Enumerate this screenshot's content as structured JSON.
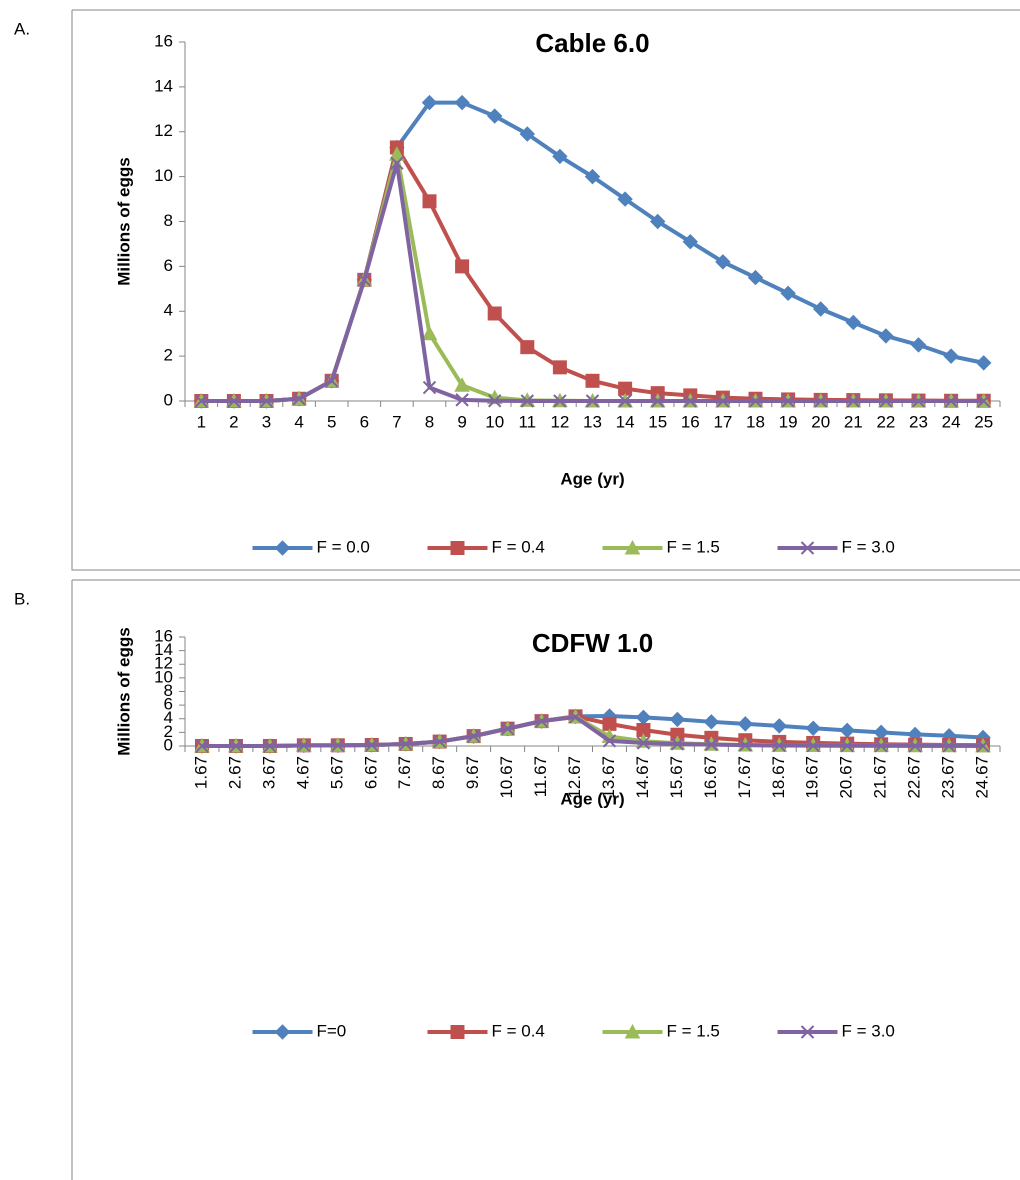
{
  "chart_data": [
    {
      "type": "line",
      "panel_label": "A.",
      "title": "Cable 6.0",
      "x_label": "Age (yr)",
      "y_label": "Millions of eggs",
      "categories": [
        "1",
        "2",
        "3",
        "4",
        "5",
        "6",
        "7",
        "8",
        "9",
        "10",
        "11",
        "12",
        "13",
        "14",
        "15",
        "16",
        "17",
        "18",
        "19",
        "20",
        "21",
        "22",
        "23",
        "24",
        "25"
      ],
      "ylim": [
        0,
        16
      ],
      "yticks": [
        0,
        2,
        4,
        6,
        8,
        10,
        12,
        14,
        16
      ],
      "grid": false,
      "legend": "bottom",
      "series": [
        {
          "name": "F = 0.0",
          "color": "#4F81BD",
          "marker": "diamond",
          "values": [
            0,
            0,
            0,
            0.1,
            0.9,
            5.4,
            11.3,
            13.3,
            13.3,
            12.7,
            11.9,
            10.9,
            10.0,
            9.0,
            8.0,
            7.1,
            6.2,
            5.5,
            4.8,
            4.1,
            3.5,
            2.9,
            2.5,
            2.0,
            1.7
          ]
        },
        {
          "name": "F = 0.4",
          "color": "#C0504D",
          "marker": "square",
          "values": [
            0,
            0,
            0,
            0.1,
            0.9,
            5.4,
            11.3,
            8.9,
            6.0,
            3.9,
            2.4,
            1.5,
            0.9,
            0.55,
            0.35,
            0.25,
            0.15,
            0.1,
            0.07,
            0.05,
            0.04,
            0.03,
            0.02,
            0.01,
            0.01
          ]
        },
        {
          "name": "F = 1.5",
          "color": "#9BBB59",
          "marker": "triangle",
          "values": [
            0,
            0,
            0,
            0.1,
            0.9,
            5.4,
            11.0,
            3.0,
            0.7,
            0.15,
            0.03,
            0.01,
            0,
            0,
            0,
            0,
            0,
            0,
            0,
            0,
            0,
            0,
            0,
            0,
            0
          ]
        },
        {
          "name": "F = 3.0",
          "color": "#8064A2",
          "marker": "x",
          "values": [
            0,
            0,
            0,
            0.1,
            0.9,
            5.4,
            10.6,
            0.6,
            0.05,
            0.01,
            0,
            0,
            0,
            0,
            0,
            0,
            0,
            0,
            0,
            0,
            0,
            0,
            0,
            0,
            0
          ]
        }
      ]
    },
    {
      "type": "line",
      "panel_label": "B.",
      "title": "CDFW 1.0",
      "x_label": "Age (yr)",
      "y_label": "Millions of eggs",
      "categories": [
        "1.67",
        "2.67",
        "3.67",
        "4.67",
        "5.67",
        "6.67",
        "7.67",
        "8.67",
        "9.67",
        "10.67",
        "11.67",
        "12.67",
        "13.67",
        "14.67",
        "15.67",
        "16.67",
        "17.67",
        "18.67",
        "19.67",
        "20.67",
        "21.67",
        "22.67",
        "23.67",
        "24.67"
      ],
      "ylim": [
        0,
        16
      ],
      "yticks": [
        0,
        2,
        4,
        6,
        8,
        10,
        12,
        14,
        16
      ],
      "grid": false,
      "legend": "bottom",
      "series": [
        {
          "name": "F=0",
          "color": "#4F81BD",
          "marker": "diamond",
          "values": [
            0,
            0,
            0,
            0.1,
            0.1,
            0.15,
            0.3,
            0.65,
            1.45,
            2.55,
            3.65,
            4.35,
            4.4,
            4.2,
            3.9,
            3.55,
            3.25,
            2.95,
            2.6,
            2.3,
            2.0,
            1.7,
            1.5,
            1.25
          ]
        },
        {
          "name": "F = 0.4",
          "color": "#C0504D",
          "marker": "square",
          "values": [
            0,
            0,
            0,
            0.1,
            0.1,
            0.15,
            0.3,
            0.65,
            1.45,
            2.55,
            3.65,
            4.35,
            3.25,
            2.35,
            1.65,
            1.2,
            0.85,
            0.6,
            0.45,
            0.35,
            0.25,
            0.2,
            0.15,
            0.12
          ]
        },
        {
          "name": "F = 1.5",
          "color": "#9BBB59",
          "marker": "triangle",
          "values": [
            0,
            0,
            0,
            0.1,
            0.1,
            0.15,
            0.3,
            0.65,
            1.45,
            2.55,
            3.65,
            4.3,
            1.4,
            0.7,
            0.4,
            0.25,
            0.15,
            0.1,
            0.08,
            0.06,
            0.05,
            0.04,
            0.03,
            0.02
          ]
        },
        {
          "name": "F = 3.0",
          "color": "#8064A2",
          "marker": "x",
          "values": [
            0,
            0,
            0,
            0.1,
            0.1,
            0.15,
            0.3,
            0.65,
            1.45,
            2.55,
            3.65,
            4.25,
            0.75,
            0.45,
            0.3,
            0.2,
            0.12,
            0.08,
            0.05,
            0.04,
            0.03,
            0.02,
            0.02,
            0.01
          ]
        }
      ]
    }
  ]
}
